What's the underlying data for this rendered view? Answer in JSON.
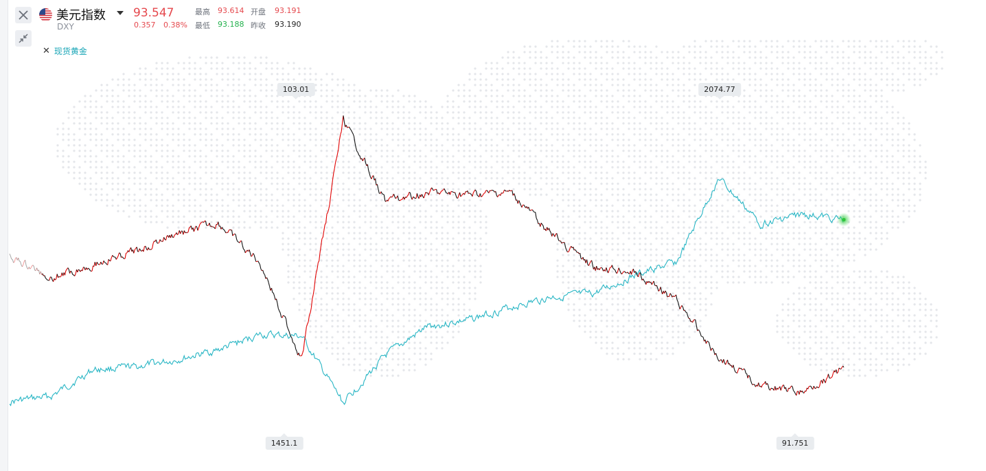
{
  "colors": {
    "up": "#e5484d",
    "down": "#22b14c",
    "neutral": "#222222",
    "gold_line": "#27b5c4",
    "dxy_line_a": "#111111",
    "dxy_line_b": "#e00000",
    "map_dots": "#e4e6ea"
  },
  "header": {
    "title": "美元指数",
    "symbol": "DXY",
    "price": "93.547",
    "change": "0.357",
    "change_pct": "0.38%",
    "stats": {
      "high_label": "最高",
      "high": "93.614",
      "open_label": "开盘",
      "open": "93.191",
      "low_label": "最低",
      "low": "93.188",
      "prev_close_label": "昨收",
      "prev_close": "93.190"
    },
    "flag_icon": "us-flag-icon"
  },
  "toolbar": {
    "close_icon": "close-icon",
    "collapse_icon": "collapse-arrows-icon",
    "dropdown_icon": "chevron-down-icon"
  },
  "legend": {
    "items": [
      {
        "name": "现货黄金",
        "remove_icon": "remove-x-icon"
      }
    ]
  },
  "annotations": {
    "dxy_high": "103.01",
    "dxy_low": "91.751",
    "gold_high": "2074.77",
    "gold_low": "1451.1"
  },
  "chart_data": {
    "type": "line",
    "title": "",
    "xlabel": "",
    "ylabel": "",
    "grid": false,
    "legend": "top-left",
    "x": [
      0,
      6,
      12,
      18,
      24,
      30,
      36,
      42,
      48,
      54,
      60,
      66,
      72,
      78,
      84,
      90,
      96,
      102,
      108,
      114,
      120
    ],
    "series": [
      {
        "name": "美元指数",
        "values": [
          97.6,
          96.8,
          97.3,
          97.8,
          98.5,
          98.9,
          97.4,
          93.6,
          102.9,
          99.8,
          100.1,
          100.0,
          100.1,
          98.5,
          97.2,
          97.0,
          95.9,
          93.7,
          92.6,
          92.3,
          93.3
        ],
        "ylim": [
          91.0,
          103.6
        ],
        "high": 103.01,
        "low": 91.751,
        "last": 93.547
      },
      {
        "name": "现货黄金",
        "values": [
          1475,
          1487,
          1546,
          1552,
          1568,
          1590,
          1624,
          1620,
          1472,
          1577,
          1641,
          1657,
          1685,
          1708,
          1715,
          1756,
          1786,
          1972,
          1871,
          1892,
          1880
        ],
        "ylim": [
          1420,
          2140
        ],
        "high": 2074.77,
        "low": 1451.1
      }
    ]
  }
}
